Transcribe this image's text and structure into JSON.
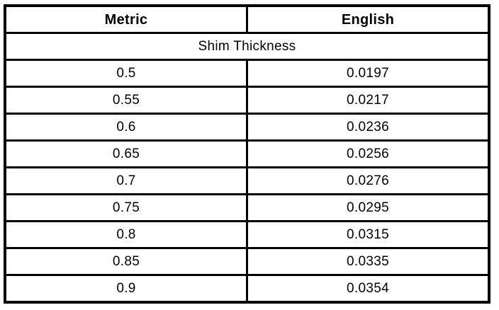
{
  "table": {
    "columns": [
      {
        "label": "Metric"
      },
      {
        "label": "English"
      }
    ],
    "section_header": "Shim Thickness",
    "rows": [
      {
        "metric": "0.5",
        "english": "0.0197"
      },
      {
        "metric": "0.55",
        "english": "0.0217"
      },
      {
        "metric": "0.6",
        "english": "0.0236"
      },
      {
        "metric": "0.65",
        "english": "0.0256"
      },
      {
        "metric": "0.7",
        "english": "0.0276"
      },
      {
        "metric": "0.75",
        "english": "0.0295"
      },
      {
        "metric": "0.8",
        "english": "0.0315"
      },
      {
        "metric": "0.85",
        "english": "0.0335"
      },
      {
        "metric": "0.9",
        "english": "0.0354"
      }
    ]
  },
  "colors": {
    "border": "#000000",
    "text": "#000000",
    "background": "#ffffff"
  }
}
